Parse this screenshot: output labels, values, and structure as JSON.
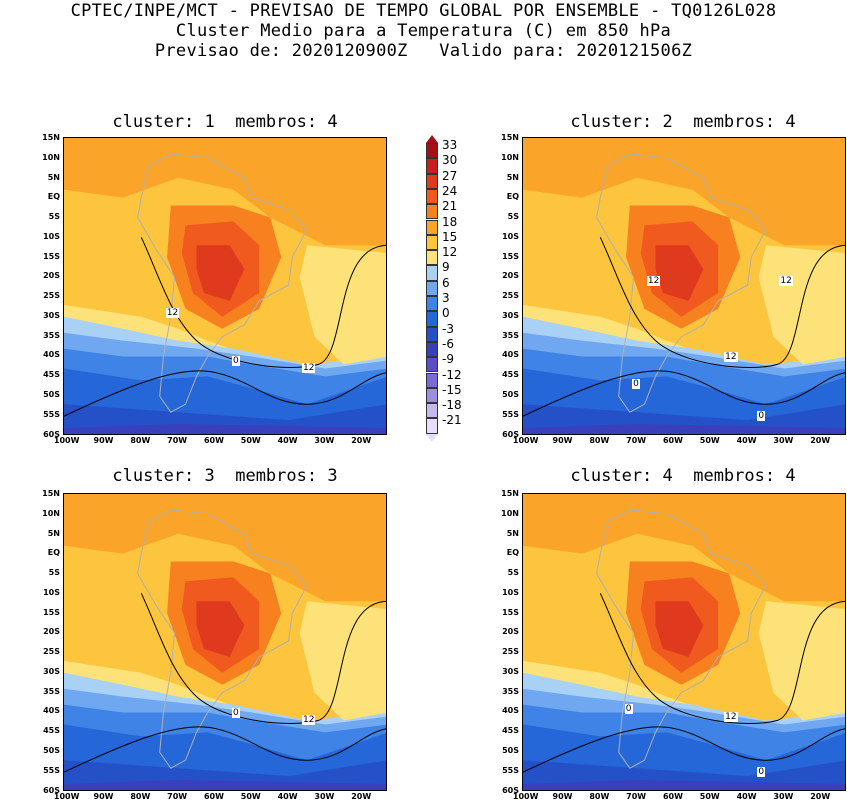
{
  "header": {
    "line1": "CPTEC/INPE/MCT - PREVISAO DE TEMPO GLOBAL POR ENSEMBLE - TQ0126L028",
    "line2": "Cluster Medio para a Temperatura (C) em 850 hPa",
    "line3": "Previsao de: 2020120900Z   Valido para: 2020121506Z"
  },
  "panels": [
    {
      "title": "cluster: 1  membros: 4",
      "contour_labels": [
        "12",
        "12",
        "0"
      ]
    },
    {
      "title": "cluster: 2  membros: 4",
      "contour_labels": [
        "12",
        "12",
        "12",
        "0",
        "0"
      ]
    },
    {
      "title": "cluster: 3  membros: 3",
      "contour_labels": [
        "0",
        "12"
      ]
    },
    {
      "title": "cluster: 4  membros: 4",
      "contour_labels": [
        "0",
        "12",
        "0"
      ]
    }
  ],
  "axes": {
    "y_ticks": [
      "15N",
      "10N",
      "5N",
      "EQ",
      "5S",
      "10S",
      "15S",
      "20S",
      "25S",
      "30S",
      "35S",
      "40S",
      "45S",
      "50S",
      "55S",
      "60S"
    ],
    "x_ticks": [
      "100W",
      "90W",
      "80W",
      "70W",
      "60W",
      "50W",
      "40W",
      "30W",
      "20W"
    ]
  },
  "colorbar": {
    "labels": [
      "33",
      "30",
      "27",
      "24",
      "21",
      "18",
      "15",
      "12",
      "9",
      "6",
      "3",
      "0",
      "-3",
      "-6",
      "-9",
      "-12",
      "-15",
      "-18",
      "-21"
    ],
    "colors": [
      "#a50f15",
      "#c81e1e",
      "#e03a1e",
      "#f05a1e",
      "#f7801f",
      "#faa52a",
      "#fcc53d",
      "#fde27a",
      "#a9d0f5",
      "#6fa8f0",
      "#3f83e6",
      "#2566d8",
      "#2450c8",
      "#3a3fbb",
      "#5b4dc8",
      "#7c6ad6",
      "#9e8ee2",
      "#c4b8ee",
      "#e6defa"
    ]
  }
}
